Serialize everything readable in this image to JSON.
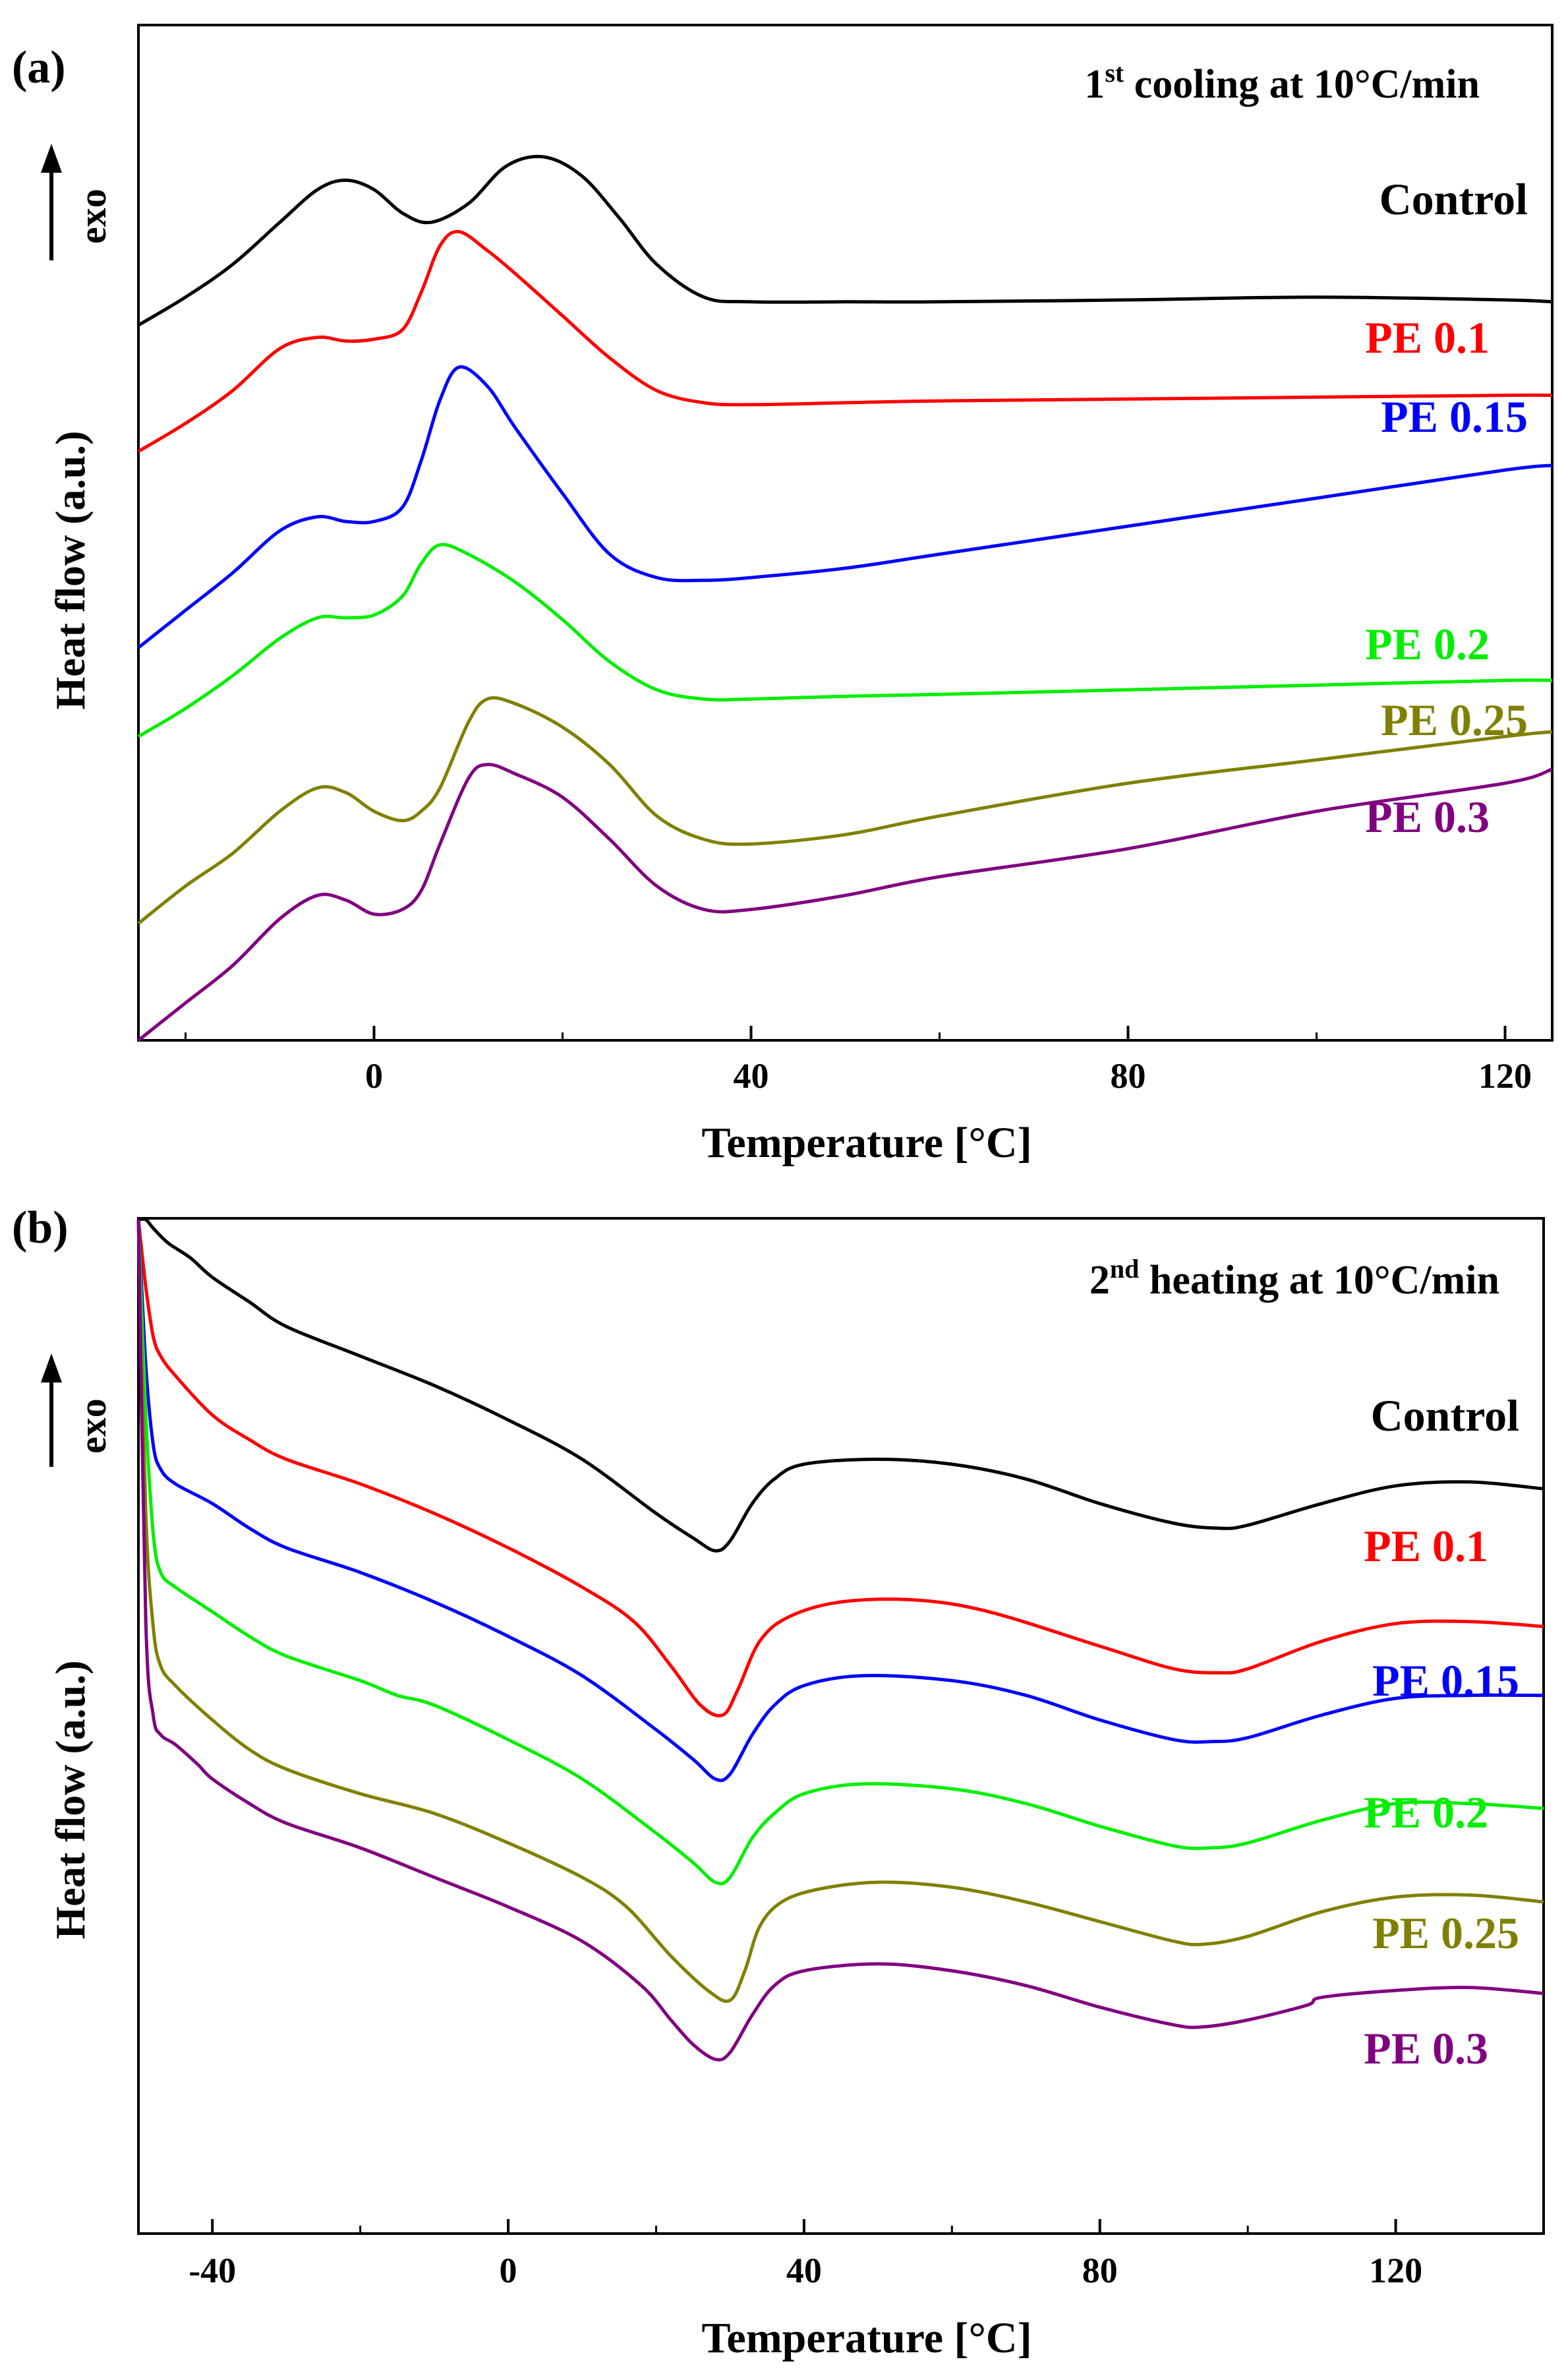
{
  "chart_data": [
    {
      "panel_label": "(a)",
      "type": "line",
      "title_main": "1",
      "title_sup": "st",
      "title_rest": " cooling at 10°C/min",
      "xlabel": "Temperature [°C]",
      "ylabel": "Heat flow (a.u.)",
      "exo_label": "exo",
      "xlim": [
        -25,
        125
      ],
      "ylim": [
        0,
        10
      ],
      "xticks": [
        "0",
        "40",
        "80",
        "120"
      ],
      "xtick_values": [
        0,
        40,
        80,
        120
      ],
      "grid": false,
      "series": [
        {
          "name": "Control",
          "color": "#000000",
          "x": [
            -25,
            -20,
            -15,
            -10,
            -6,
            -3,
            0,
            3,
            6,
            10,
            14,
            18,
            22,
            26,
            30,
            35,
            40,
            50,
            60,
            80,
            100,
            120,
            125
          ],
          "y": [
            7.65,
            7.95,
            8.3,
            8.75,
            9.1,
            9.2,
            9.1,
            8.85,
            8.75,
            8.95,
            9.35,
            9.45,
            9.25,
            8.8,
            8.3,
            7.95,
            7.9,
            7.9,
            7.9,
            7.92,
            7.95,
            7.92,
            7.9
          ]
        },
        {
          "name": "PE 0.1",
          "color": "#ff0000",
          "x": [
            -25,
            -20,
            -15,
            -10,
            -6,
            -3,
            0,
            3,
            5,
            7,
            9,
            12,
            15,
            20,
            25,
            30,
            35,
            40,
            50,
            60,
            80,
            100,
            120,
            125
          ],
          "y": [
            6.3,
            6.6,
            6.95,
            7.4,
            7.52,
            7.48,
            7.5,
            7.6,
            8.0,
            8.5,
            8.65,
            8.45,
            8.2,
            7.75,
            7.3,
            6.95,
            6.82,
            6.8,
            6.82,
            6.84,
            6.86,
            6.88,
            6.9,
            6.9
          ]
        },
        {
          "name": "PE 0.15",
          "color": "#0000ff",
          "x": [
            -25,
            -20,
            -15,
            -10,
            -6,
            -3,
            0,
            3,
            5,
            7,
            9,
            12,
            15,
            20,
            25,
            30,
            35,
            40,
            50,
            60,
            80,
            100,
            120,
            125
          ],
          "y": [
            4.2,
            4.6,
            5.0,
            5.45,
            5.6,
            5.55,
            5.55,
            5.7,
            6.2,
            6.85,
            7.2,
            7.0,
            6.55,
            5.85,
            5.2,
            4.95,
            4.92,
            4.95,
            5.05,
            5.2,
            5.5,
            5.8,
            6.1,
            6.15
          ]
        },
        {
          "name": "PE 0.2",
          "color": "#00ee00",
          "x": [
            -25,
            -20,
            -15,
            -10,
            -6,
            -3,
            0,
            3,
            5,
            7,
            10,
            15,
            20,
            25,
            30,
            35,
            40,
            50,
            60,
            80,
            100,
            120,
            125
          ],
          "y": [
            3.25,
            3.55,
            3.9,
            4.3,
            4.52,
            4.52,
            4.55,
            4.75,
            5.1,
            5.3,
            5.2,
            4.9,
            4.5,
            4.05,
            3.75,
            3.65,
            3.65,
            3.68,
            3.7,
            3.75,
            3.8,
            3.85,
            3.85
          ]
        },
        {
          "name": "PE 0.25",
          "color": "#808000",
          "x": [
            -25,
            -20,
            -15,
            -10,
            -6,
            -3,
            0,
            3,
            5,
            7,
            10,
            12,
            15,
            20,
            25,
            30,
            35,
            40,
            50,
            60,
            80,
            100,
            120,
            125
          ],
          "y": [
            1.25,
            1.65,
            2.0,
            2.45,
            2.7,
            2.65,
            2.45,
            2.35,
            2.45,
            2.7,
            3.4,
            3.65,
            3.6,
            3.35,
            2.95,
            2.4,
            2.15,
            2.1,
            2.2,
            2.4,
            2.75,
            3.0,
            3.25,
            3.3
          ]
        },
        {
          "name": "PE 0.3",
          "color": "#800080",
          "x": [
            -25,
            -20,
            -15,
            -10,
            -6,
            -3,
            0,
            3,
            5,
            7,
            10,
            12,
            15,
            20,
            25,
            30,
            35,
            40,
            50,
            60,
            80,
            100,
            120,
            125
          ],
          "y": [
            0.0,
            0.4,
            0.8,
            1.3,
            1.55,
            1.5,
            1.35,
            1.4,
            1.6,
            2.1,
            2.8,
            2.95,
            2.85,
            2.6,
            2.15,
            1.65,
            1.4,
            1.4,
            1.55,
            1.75,
            2.05,
            2.45,
            2.75,
            2.9
          ]
        }
      ]
    },
    {
      "panel_label": "(b)",
      "type": "line",
      "title_main": "2",
      "title_sup": "nd",
      "title_rest": " heating at 10°C/min",
      "xlabel": "Temperature [°C]",
      "ylabel": "Heat flow (a.u.)",
      "exo_label": "exo",
      "xlim": [
        -50,
        140
      ],
      "ylim": [
        0,
        10
      ],
      "xticks": [
        "-40",
        "0",
        "40",
        "80",
        "120"
      ],
      "xtick_values": [
        -40,
        0,
        40,
        80,
        120
      ],
      "grid": false,
      "series": [
        {
          "name": "Control",
          "color": "#000000",
          "x": [
            -50,
            -49,
            -48,
            -46,
            -43,
            -40,
            -35,
            -30,
            -20,
            -10,
            0,
            10,
            20,
            25,
            28,
            30,
            33,
            36,
            40,
            50,
            60,
            70,
            80,
            90,
            96,
            100,
            110,
            120,
            130,
            140
          ],
          "y": [
            10.0,
            10.1,
            9.9,
            9.75,
            9.6,
            9.4,
            9.15,
            8.9,
            8.6,
            8.3,
            7.95,
            7.55,
            7.0,
            6.75,
            6.62,
            6.72,
            7.1,
            7.35,
            7.5,
            7.55,
            7.5,
            7.35,
            7.1,
            6.9,
            6.85,
            6.88,
            7.1,
            7.28,
            7.32,
            7.25
          ]
        },
        {
          "name": "PE 0.1",
          "color": "#ff0000",
          "x": [
            -50,
            -49,
            -48,
            -47,
            -45,
            -40,
            -35,
            -30,
            -20,
            -10,
            0,
            10,
            17,
            22,
            26,
            29,
            31,
            34,
            38,
            45,
            55,
            65,
            80,
            90,
            96,
            100,
            110,
            120,
            130,
            140
          ],
          "y": [
            10.1,
            9.3,
            8.8,
            8.6,
            8.4,
            8.0,
            7.75,
            7.55,
            7.3,
            7.0,
            6.65,
            6.25,
            5.9,
            5.45,
            5.05,
            4.95,
            5.2,
            5.7,
            5.95,
            6.1,
            6.12,
            6.0,
            5.65,
            5.42,
            5.38,
            5.42,
            5.7,
            5.88,
            5.9,
            5.85
          ]
        },
        {
          "name": "PE 0.15",
          "color": "#0000ff",
          "x": [
            -50,
            -49,
            -48,
            -47,
            -45,
            -40,
            -35,
            -30,
            -20,
            -10,
            0,
            10,
            20,
            25,
            28,
            30,
            33,
            36,
            40,
            48,
            60,
            70,
            80,
            90,
            95,
            100,
            110,
            120,
            130,
            140
          ],
          "y": [
            10.0,
            8.5,
            7.7,
            7.45,
            7.3,
            7.1,
            6.85,
            6.65,
            6.4,
            6.1,
            5.75,
            5.35,
            4.8,
            4.5,
            4.3,
            4.35,
            4.75,
            5.05,
            5.25,
            5.35,
            5.3,
            5.15,
            4.9,
            4.7,
            4.68,
            4.72,
            4.95,
            5.12,
            5.15,
            5.15
          ]
        },
        {
          "name": "PE 0.2",
          "color": "#00ee00",
          "x": [
            -50,
            -49,
            -48,
            -47,
            -45,
            -40,
            -35,
            -30,
            -20,
            -15,
            -10,
            0,
            10,
            20,
            25,
            28,
            30,
            33,
            36,
            40,
            48,
            60,
            70,
            80,
            90,
            95,
            100,
            110,
            120,
            130,
            140
          ],
          "y": [
            10.0,
            8.0,
            6.8,
            6.4,
            6.25,
            6.0,
            5.75,
            5.55,
            5.3,
            5.15,
            5.05,
            4.7,
            4.3,
            3.75,
            3.45,
            3.25,
            3.3,
            3.7,
            3.95,
            4.15,
            4.25,
            4.2,
            4.05,
            3.82,
            3.62,
            3.6,
            3.65,
            3.88,
            4.05,
            4.05,
            4.0
          ]
        },
        {
          "name": "PE 0.25",
          "color": "#808000",
          "x": [
            -50,
            -49,
            -48,
            -47,
            -45,
            -40,
            -35,
            -30,
            -20,
            -10,
            0,
            10,
            16,
            22,
            27,
            30,
            32,
            34,
            37,
            42,
            50,
            60,
            70,
            80,
            90,
            94,
            100,
            110,
            120,
            130,
            140
          ],
          "y": [
            10.0,
            7.0,
            5.85,
            5.45,
            5.25,
            4.9,
            4.6,
            4.4,
            4.15,
            3.95,
            3.65,
            3.3,
            3.0,
            2.5,
            2.15,
            2.05,
            2.35,
            2.8,
            3.05,
            3.18,
            3.25,
            3.2,
            3.05,
            2.85,
            2.65,
            2.62,
            2.7,
            2.95,
            3.1,
            3.12,
            3.05
          ]
        },
        {
          "name": "PE 0.3",
          "color": "#800080",
          "x": [
            -50,
            -49,
            -48,
            -47,
            -45,
            -42,
            -40,
            -35,
            -30,
            -20,
            -10,
            0,
            10,
            18,
            22,
            25,
            28,
            30,
            33,
            36,
            40,
            50,
            60,
            70,
            80,
            90,
            94,
            100,
            108,
            110,
            120,
            130,
            140
          ],
          "y": [
            10.0,
            5.9,
            4.95,
            4.75,
            4.65,
            4.45,
            4.3,
            4.05,
            3.85,
            3.6,
            3.3,
            3.0,
            2.65,
            2.2,
            1.85,
            1.6,
            1.45,
            1.52,
            1.9,
            2.2,
            2.35,
            2.42,
            2.35,
            2.2,
            1.98,
            1.8,
            1.78,
            1.85,
            2.0,
            2.08,
            2.15,
            2.18,
            2.12
          ]
        }
      ]
    }
  ]
}
